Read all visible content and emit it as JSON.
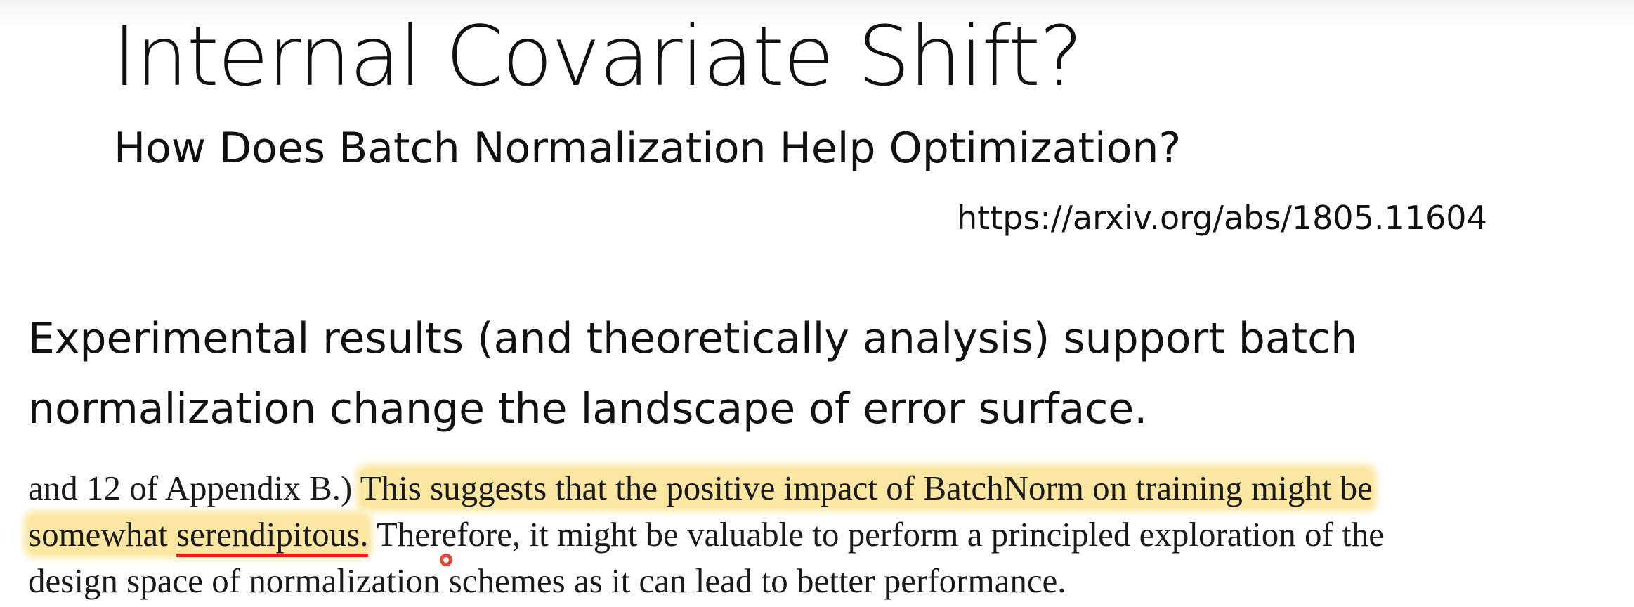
{
  "slide": {
    "title": "Internal Covariate Shift?",
    "subtitle": "How Does Batch Normalization Help Optimization?",
    "url": "https://arxiv.org/abs/1805.11604",
    "statement_line1": "Experimental results (and theoretically analysis) support batch",
    "statement_line2": "normalization change the landscape of error surface."
  },
  "excerpt": {
    "line1_plain": "and 12 of Appendix B.) ",
    "line1_highlight": "This suggests that the positive impact of BatchNorm on training might be",
    "line2_highlight_a": "somewhat ",
    "line2_highlight_underlined": "serendipitous.",
    "line2_plain": " Therefore, it might be valuable to perform a principled exploration of the",
    "line3_plain": "design space of normalization schemes as it can lead to better performance."
  },
  "colors": {
    "highlight": "#fbe7a1",
    "underline": "#e2231a",
    "cursor": "#e2231a"
  },
  "icons": {
    "cursor": "red-pointer-icon"
  }
}
